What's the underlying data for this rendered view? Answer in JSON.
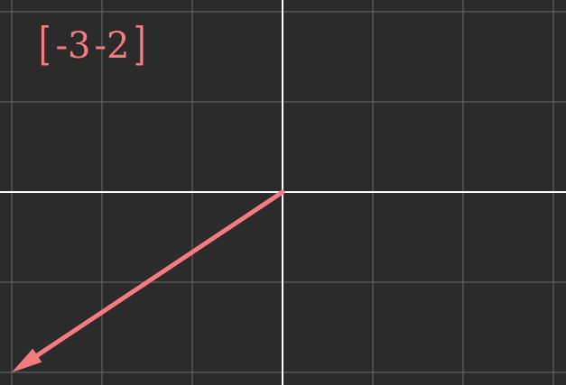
{
  "colors": {
    "background": "#2b2b2b",
    "grid": "#5f6166",
    "axes": "#ffffff",
    "vector": "#f47c7f"
  },
  "grid": {
    "x_range": [
      -3,
      3
    ],
    "y_range": [
      -2,
      2
    ],
    "step": 1
  },
  "vector": {
    "x": -3,
    "y": -2,
    "entries": [
      "-3",
      "-2"
    ],
    "open_bracket": "[",
    "close_bracket": "]"
  }
}
